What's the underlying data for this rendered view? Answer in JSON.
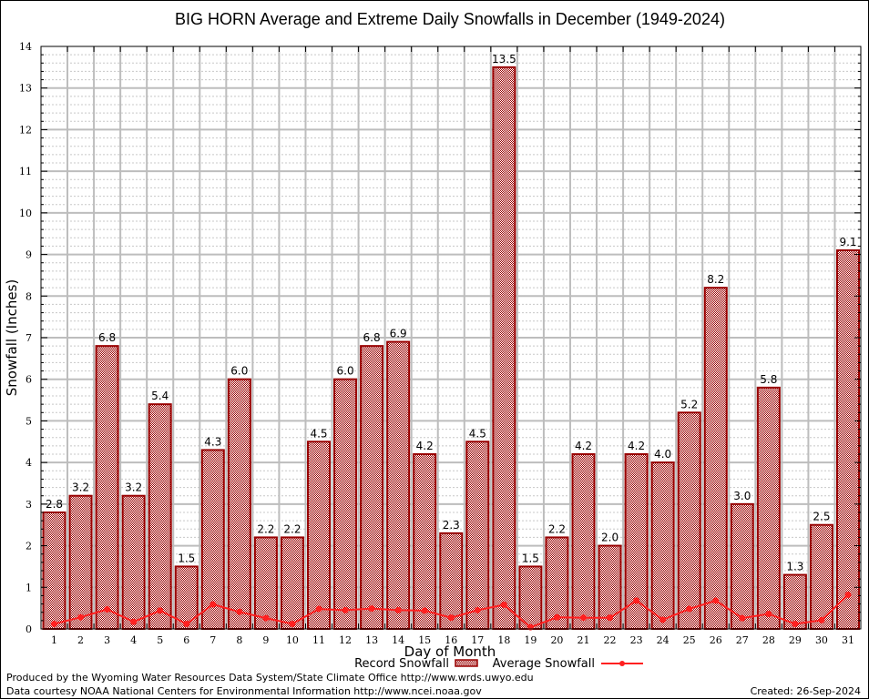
{
  "chart_data": {
    "type": "bar",
    "title": "BIG HORN Average and Extreme Daily Snowfalls in December (1949-2024)",
    "xlabel": "Day of Month",
    "ylabel": "Snowfall (Inches)",
    "ylim": [
      0,
      14
    ],
    "yticks": [
      "0",
      "1",
      "2",
      "3",
      "4",
      "5",
      "6",
      "7",
      "8",
      "9",
      "10",
      "11",
      "12",
      "13",
      "14"
    ],
    "grid": true,
    "legend_position": "bottom-center",
    "categories": [
      "1",
      "2",
      "3",
      "4",
      "5",
      "6",
      "7",
      "8",
      "9",
      "10",
      "11",
      "12",
      "13",
      "14",
      "15",
      "16",
      "17",
      "18",
      "19",
      "20",
      "21",
      "22",
      "23",
      "24",
      "25",
      "26",
      "27",
      "28",
      "29",
      "30",
      "31"
    ],
    "series": [
      {
        "name": "Record Snowfall",
        "type": "bar",
        "color": "#990000",
        "values": [
          2.8,
          3.2,
          6.8,
          3.2,
          5.4,
          1.5,
          4.3,
          6.0,
          2.2,
          2.2,
          4.5,
          6.0,
          6.8,
          6.9,
          4.2,
          2.3,
          4.5,
          13.5,
          1.5,
          2.2,
          4.2,
          2.0,
          4.2,
          4.0,
          5.2,
          8.2,
          3.0,
          5.8,
          1.3,
          2.5,
          9.1
        ],
        "labels": [
          "2.8",
          "3.2",
          "6.8",
          "3.2",
          "5.4",
          "1.5",
          "4.3",
          "6.0",
          "2.2",
          "2.2",
          "4.5",
          "6.0",
          "6.8",
          "6.9",
          "4.2",
          "2.3",
          "4.5",
          "13.5",
          "1.5",
          "2.2",
          "4.2",
          "2.0",
          "4.2",
          "4.0",
          "5.2",
          "8.2",
          "3.0",
          "5.8",
          "1.3",
          "2.5",
          "9.1"
        ]
      },
      {
        "name": "Average Snowfall",
        "type": "line",
        "color": "#ff2020",
        "values": [
          0.12,
          0.28,
          0.47,
          0.17,
          0.44,
          0.12,
          0.59,
          0.41,
          0.26,
          0.12,
          0.48,
          0.45,
          0.49,
          0.45,
          0.44,
          0.27,
          0.45,
          0.58,
          0.04,
          0.28,
          0.27,
          0.27,
          0.68,
          0.22,
          0.48,
          0.68,
          0.26,
          0.36,
          0.12,
          0.21,
          0.82
        ]
      }
    ]
  },
  "footer": {
    "line1": "Produced by the Wyoming Water Resources Data System/State Climate Office http://www.wrds.uwyo.edu",
    "line2": "Data courtesy NOAA National Centers for Environmental Information http://www.ncei.noaa.gov",
    "created": "Created: 26-Sep-2024"
  }
}
